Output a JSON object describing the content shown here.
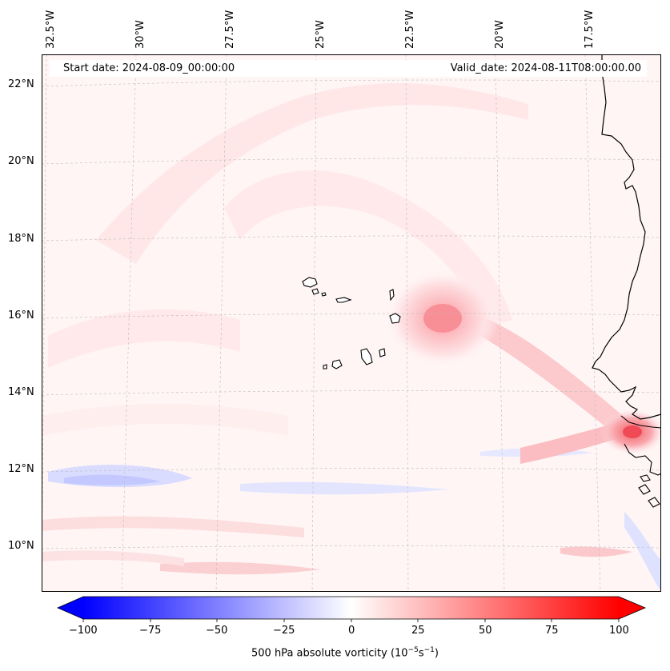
{
  "header": {
    "start_date": "Start date: 2024-08-09_00:00:00",
    "valid_date": "Valid_date: 2024-08-11T08:00:00.00"
  },
  "map": {
    "lon_labels": [
      "32.5°W",
      "30°W",
      "27.5°W",
      "25°W",
      "22.5°W",
      "20°W",
      "17.5°W"
    ],
    "lat_labels": [
      "22°N",
      "20°N",
      "18°N",
      "16°N",
      "14°N",
      "12°N",
      "10°N"
    ]
  },
  "colorbar": {
    "ticks": [
      "−100",
      "−75",
      "−50",
      "−25",
      "0",
      "25",
      "50",
      "75",
      "100"
    ],
    "label_main": "500 hPa absolute vorticity (10",
    "label_exp1": "−5",
    "label_mid": "s",
    "label_exp2": "−1",
    "label_end": ")"
  },
  "colors": {
    "negative": "#0000ff",
    "positive": "#ff0000",
    "coast": "#000000"
  }
}
